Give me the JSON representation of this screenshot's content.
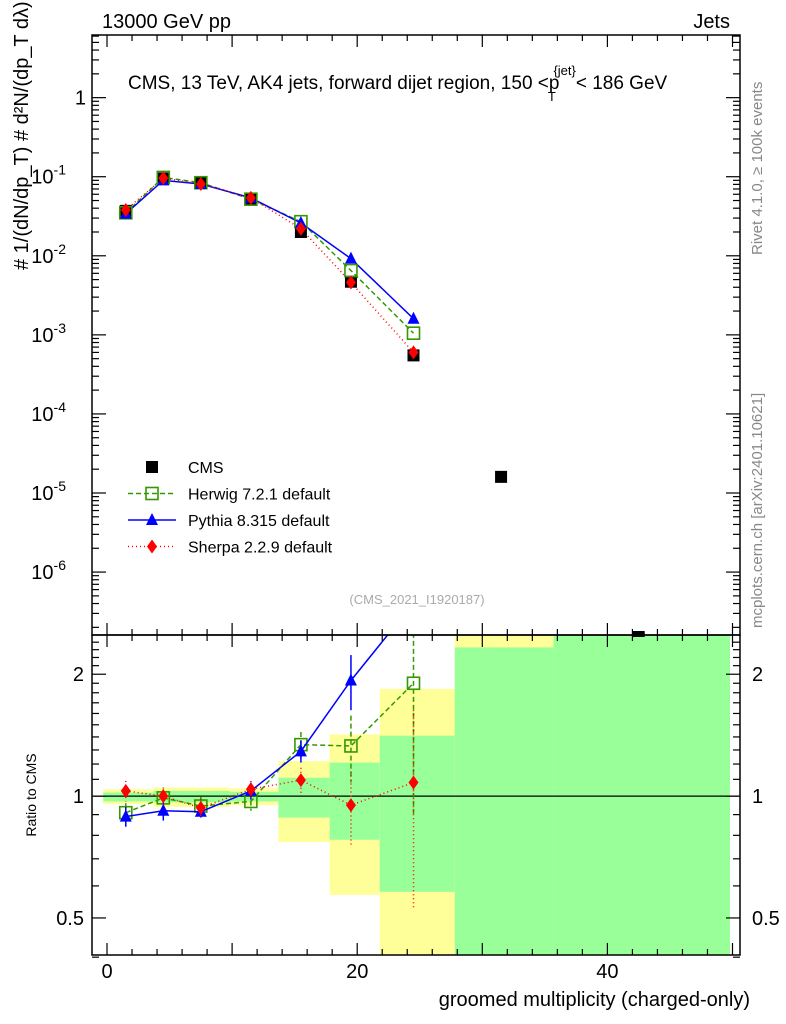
{
  "header": {
    "energy": "13000 GeV pp",
    "category": "Jets",
    "rivet": "Rivet 4.1.0, ≥ 100k events",
    "mcplots": "mcplots.cern.ch [arXiv:2401.10621]",
    "analysis": "(CMS_2021_I1920187)"
  },
  "chart_data": [
    {
      "type": "line",
      "title": "CMS, 13 TeV, AK4 jets, forward dijet region, 150 <p",
      "title_sup": "{jet}",
      "title_sub": "T",
      "title_tail": "< 186 GeV",
      "ylabel": "# 1/(dN/dp_T)  # d²N/(dp_T dλ)",
      "yscale": "log",
      "ylim": [
        1.6e-07,
        6.2
      ],
      "xlim": [
        -1.2,
        50.6
      ],
      "yticks": [
        {
          "v": 1,
          "label": "1"
        },
        {
          "v": 0.1,
          "label": "10",
          "exp": "-1"
        },
        {
          "v": 0.01,
          "label": "10",
          "exp": "-2"
        },
        {
          "v": 0.001,
          "label": "10",
          "exp": "-3"
        },
        {
          "v": 0.0001,
          "label": "10",
          "exp": "-4"
        },
        {
          "v": 1e-05,
          "label": "10",
          "exp": "-5"
        },
        {
          "v": 1e-06,
          "label": "10",
          "exp": "-6"
        }
      ],
      "legend_position": "bottom-left",
      "series": [
        {
          "name": "CMS",
          "color": "#000000",
          "marker": "square",
          "x": [
            1.5,
            4.5,
            7.5,
            11.5,
            15.5,
            19.5,
            24.5,
            31.5,
            42.5
          ],
          "y": [
            0.037,
            0.095,
            0.085,
            0.052,
            0.02,
            0.0047,
            0.00055,
            1.6e-05,
            1.45e-07
          ]
        },
        {
          "name": "Herwig 7.2.1 default",
          "color": "#339900",
          "marker": "open-square",
          "dash": "5,3",
          "x": [
            1.5,
            4.5,
            7.5,
            11.5,
            15.5,
            19.5,
            24.5
          ],
          "y": [
            0.035,
            0.098,
            0.084,
            0.052,
            0.027,
            0.0065,
            0.00105
          ]
        },
        {
          "name": "Pythia 8.315 default",
          "color": "#0000ff",
          "marker": "triangle",
          "dash": "",
          "x": [
            1.5,
            4.5,
            7.5,
            11.5,
            15.5,
            19.5,
            24.5
          ],
          "y": [
            0.034,
            0.09,
            0.081,
            0.054,
            0.026,
            0.0092,
            0.0016
          ]
        },
        {
          "name": "Sherpa 2.2.9 default",
          "color": "#ff0000",
          "marker": "diamond",
          "dash": "1,3",
          "x": [
            1.5,
            4.5,
            7.5,
            11.5,
            15.5,
            19.5,
            24.5
          ],
          "y": [
            0.038,
            0.096,
            0.081,
            0.054,
            0.022,
            0.0046,
            0.0006
          ]
        }
      ]
    },
    {
      "type": "line",
      "ylabel": "Ratio to CMS",
      "xlabel": "groomed multiplicity (charged-only)",
      "yscale": "log",
      "ylim": [
        0.405,
        2.5
      ],
      "xlim": [
        -1.2,
        50.6
      ],
      "xticks": [
        {
          "v": 0,
          "label": "0"
        },
        {
          "v": 20,
          "label": "20"
        },
        {
          "v": 40,
          "label": "40"
        }
      ],
      "yticks": [
        {
          "v": 0.5,
          "label": "0.5"
        },
        {
          "v": 1,
          "label": "1"
        },
        {
          "v": 2,
          "label": "2"
        }
      ],
      "bands": {
        "edges": [
          -0.3,
          3.7,
          9.8,
          13.7,
          17.8,
          21.8,
          27.8,
          35.7,
          49.8
        ],
        "yellow": [
          [
            0.955,
            1.04
          ],
          [
            0.94,
            1.05
          ],
          [
            0.95,
            1.045
          ],
          [
            0.77,
            1.22
          ],
          [
            0.57,
            1.42
          ],
          [
            0.39,
            1.84
          ],
          [
            0.39,
            2.6
          ],
          [
            0.39,
            2.6
          ]
        ],
        "green": [
          [
            0.97,
            1.02
          ],
          [
            0.965,
            1.03
          ],
          [
            0.97,
            1.025
          ],
          [
            0.885,
            1.11
          ],
          [
            0.78,
            1.21
          ],
          [
            0.58,
            1.41
          ],
          [
            0.39,
            2.33
          ],
          [
            0.39,
            2.6
          ]
        ],
        "yellow_color": "#ffff99",
        "green_color": "#99ff99"
      },
      "series": [
        {
          "name": "Herwig 7.2.1 default",
          "x": [
            1.5,
            4.5,
            7.5,
            11.5,
            15.5,
            19.5,
            24.5
          ],
          "y": [
            0.91,
            0.99,
            0.945,
            0.97,
            1.34,
            1.33,
            1.9
          ],
          "err": [
            0.05,
            0.05,
            0.05,
            0.05,
            0.1,
            0.25,
            1.0
          ]
        },
        {
          "name": "Pythia 8.315 default",
          "x": [
            1.5,
            4.5,
            7.5,
            11.5,
            15.5,
            19.5,
            24.5
          ],
          "y": [
            0.89,
            0.92,
            0.915,
            1.03,
            1.29,
            1.93,
            3.0
          ],
          "err": [
            0.05,
            0.05,
            0.03,
            0.05,
            0.08,
            0.3,
            0.5
          ]
        },
        {
          "name": "Sherpa 2.2.9 default",
          "x": [
            1.5,
            4.5,
            7.5,
            11.5,
            15.5,
            19.5,
            24.5
          ],
          "y": [
            1.03,
            1.0,
            0.935,
            1.04,
            1.095,
            0.95,
            1.08
          ],
          "err": [
            0.06,
            0.05,
            0.05,
            0.05,
            0.08,
            0.2,
            0.55
          ]
        }
      ]
    }
  ]
}
